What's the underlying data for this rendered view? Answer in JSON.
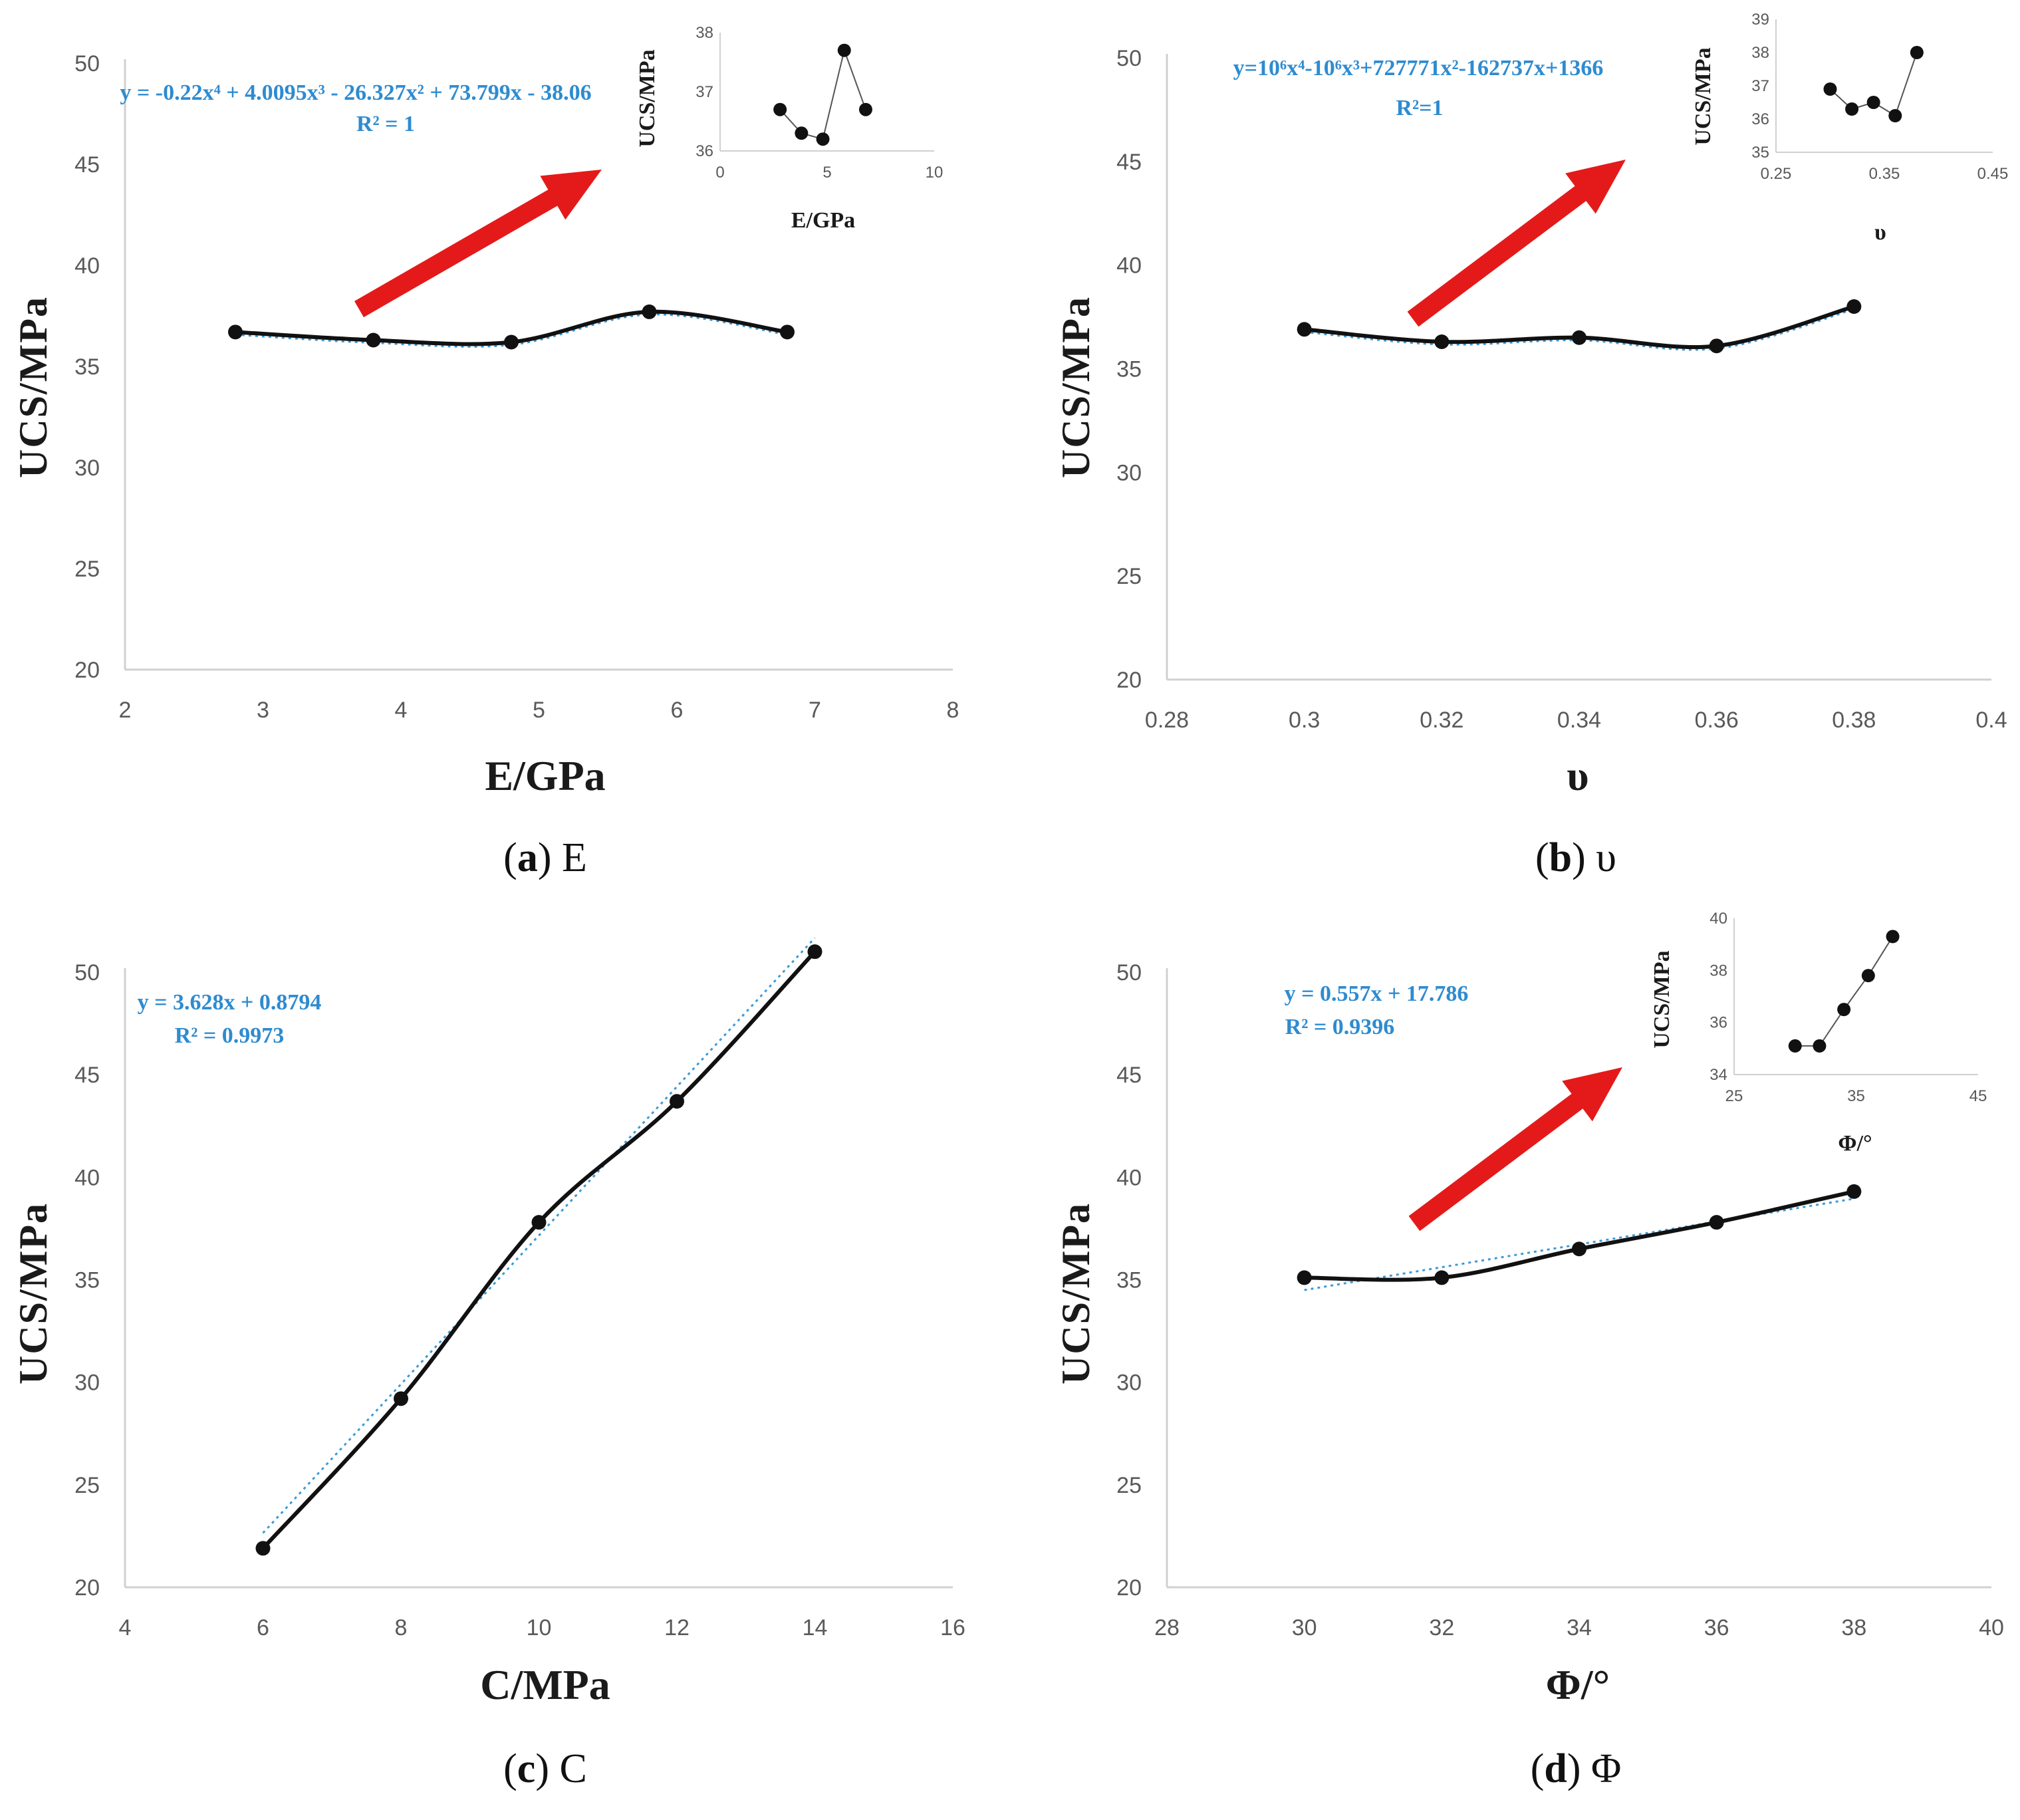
{
  "colors": {
    "data_line": "#111111",
    "trendline": "#3a9ad9",
    "arrow": "#e41a1a",
    "axis": "#d0d0d0",
    "equation": "#2e8bd0"
  },
  "chart_data": [
    {
      "type": "line",
      "panel": "a",
      "caption_letter": "a",
      "caption_param": "E",
      "xlabel": "E/GPa",
      "ylabel": "UCS/MPa",
      "xlim": [
        2,
        8
      ],
      "ylim": [
        20,
        50
      ],
      "xticks": [
        "2",
        "3",
        "4",
        "5",
        "6",
        "7",
        "8"
      ],
      "yticks": [
        "20",
        "25",
        "30",
        "35",
        "40",
        "45",
        "50"
      ],
      "x": [
        2.8,
        3.8,
        4.8,
        5.8,
        6.8
      ],
      "values": [
        36.7,
        36.3,
        36.2,
        37.7,
        36.7
      ],
      "trendline": {
        "type": "polynomial",
        "equation": "y = -0.22x⁴ + 4.0095x³ - 26.327x² + 73.799x - 38.06",
        "r2": "R² = 1"
      },
      "inset": {
        "xlabel": "E/GPa",
        "ylabel": "UCS/MPa",
        "xlim": [
          0,
          10
        ],
        "ylim": [
          36,
          38
        ],
        "xticks": [
          "0",
          "5",
          "10"
        ],
        "yticks": [
          "36",
          "37",
          "38"
        ],
        "x": [
          2.8,
          3.8,
          4.8,
          5.8,
          6.8
        ],
        "values": [
          36.7,
          36.3,
          36.2,
          37.7,
          36.7
        ]
      }
    },
    {
      "type": "line",
      "panel": "b",
      "caption_letter": "b",
      "caption_param": "υ",
      "xlabel": "υ",
      "ylabel": "UCS/MPa",
      "xlim": [
        0.28,
        0.4
      ],
      "ylim": [
        20,
        50
      ],
      "xticks": [
        "0.28",
        "0.3",
        "0.32",
        "0.34",
        "0.36",
        "0.38",
        "0.4"
      ],
      "yticks": [
        "20",
        "25",
        "30",
        "35",
        "40",
        "45",
        "50"
      ],
      "x": [
        0.3,
        0.32,
        0.34,
        0.36,
        0.38
      ],
      "values": [
        36.9,
        36.3,
        36.5,
        36.1,
        38.0
      ],
      "trendline": {
        "type": "polynomial",
        "equation": "y=10⁶x⁴-10⁶x³+727771x²-162737x+1366",
        "r2": "R²=1"
      },
      "inset": {
        "xlabel": "υ",
        "ylabel": "UCS/MPa",
        "xlim": [
          0.25,
          0.45
        ],
        "ylim": [
          35,
          39
        ],
        "xticks": [
          "0.25",
          "0.35",
          "0.45"
        ],
        "yticks": [
          "35",
          "36",
          "37",
          "38",
          "39"
        ],
        "x": [
          0.3,
          0.32,
          0.34,
          0.36,
          0.38
        ],
        "values": [
          36.9,
          36.3,
          36.5,
          36.1,
          38.0
        ]
      }
    },
    {
      "type": "line",
      "panel": "c",
      "caption_letter": "c",
      "caption_param": "C",
      "xlabel": "C/MPa",
      "ylabel": "UCS/MPa",
      "xlim": [
        4,
        16
      ],
      "ylim": [
        20,
        50
      ],
      "xticks": [
        "4",
        "6",
        "8",
        "10",
        "12",
        "14",
        "16"
      ],
      "yticks": [
        "20",
        "25",
        "30",
        "35",
        "40",
        "45",
        "50"
      ],
      "x": [
        6,
        8,
        10,
        12,
        14
      ],
      "values": [
        21.9,
        29.2,
        37.8,
        43.7,
        51.0
      ],
      "trendline": {
        "type": "linear",
        "equation": "y = 3.628x + 0.8794",
        "r2": "R² = 0.9973",
        "slope": 3.628,
        "intercept": 0.8794
      }
    },
    {
      "type": "line",
      "panel": "d",
      "caption_letter": "d",
      "caption_param": "Φ",
      "xlabel": "Φ/°",
      "ylabel": "UCS/MPa",
      "xlim": [
        28,
        40
      ],
      "ylim": [
        20,
        50
      ],
      "xticks": [
        "28",
        "30",
        "32",
        "34",
        "36",
        "38",
        "40"
      ],
      "yticks": [
        "20",
        "25",
        "30",
        "35",
        "40",
        "45",
        "50"
      ],
      "x": [
        30,
        32,
        34,
        36,
        38
      ],
      "values": [
        35.1,
        35.1,
        36.5,
        37.8,
        39.3
      ],
      "trendline": {
        "type": "linear",
        "equation": "y = 0.557x + 17.786",
        "r2": "R² = 0.9396",
        "slope": 0.557,
        "intercept": 17.786
      },
      "inset": {
        "xlabel": "Φ/°",
        "ylabel": "UCS/MPa",
        "xlim": [
          25,
          45
        ],
        "ylim": [
          34,
          40
        ],
        "xticks": [
          "25",
          "35",
          "45"
        ],
        "yticks": [
          "34",
          "36",
          "38",
          "40"
        ],
        "x": [
          30,
          32,
          34,
          36,
          38
        ],
        "values": [
          35.1,
          35.1,
          36.5,
          37.8,
          39.3
        ]
      }
    }
  ]
}
